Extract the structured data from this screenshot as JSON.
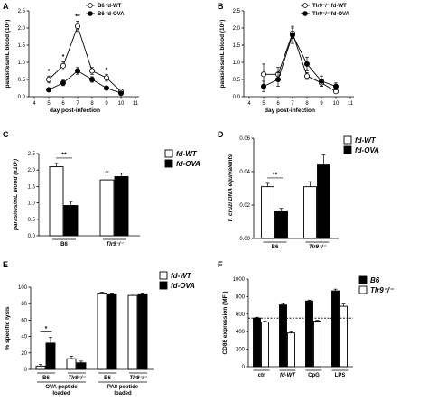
{
  "chart_data": [
    {
      "panel": "A",
      "type": "line",
      "x": [
        4,
        5,
        6,
        7,
        8,
        9,
        10,
        11
      ],
      "xlabel": "day post-infection",
      "ylabel": "parasites/mL blood (10⁶)",
      "ylim": [
        0,
        2.5
      ],
      "yticks": [
        "0.0",
        "0.5",
        "1.0",
        "1.5",
        "2.0",
        "2.5"
      ],
      "xticks": [
        "4",
        "5",
        "6",
        "7",
        "8",
        "9",
        "10",
        "11"
      ],
      "series": [
        {
          "name": "B6 fd-WT",
          "marker": "open",
          "x": [
            5,
            6,
            7,
            8,
            9,
            10
          ],
          "values": [
            0.5,
            0.9,
            2.05,
            0.75,
            0.55,
            0.15
          ],
          "err": [
            0.1,
            0.12,
            0.15,
            0.1,
            0.1,
            0.05
          ]
        },
        {
          "name": "B6 fd-OVA",
          "marker": "filled",
          "x": [
            5,
            6,
            7,
            8,
            9,
            10
          ],
          "values": [
            0.2,
            0.4,
            0.75,
            0.5,
            0.25,
            0.1
          ],
          "err": [
            0.05,
            0.08,
            0.1,
            0.08,
            0.05,
            0.03
          ]
        }
      ],
      "sig": [
        {
          "x": 5,
          "label": "*"
        },
        {
          "x": 6,
          "label": "*"
        },
        {
          "x": 7,
          "label": "**"
        },
        {
          "x": 9,
          "label": "*"
        }
      ]
    },
    {
      "panel": "B",
      "type": "line",
      "x": [
        4,
        5,
        6,
        7,
        8,
        9,
        10,
        11
      ],
      "xlabel": "day post-infection",
      "ylabel": "parasites/mL blood (10⁶)",
      "ylim": [
        0,
        2.5
      ],
      "yticks": [
        "0.0",
        "0.5",
        "1.0",
        "1.5",
        "2.0",
        "2.5"
      ],
      "xticks": [
        "4",
        "5",
        "6",
        "7",
        "8",
        "9",
        "10",
        "11"
      ],
      "series": [
        {
          "name": "Tlr9⁻/⁻ fd-WT",
          "marker": "open",
          "x": [
            5,
            6,
            7,
            8,
            9,
            10
          ],
          "values": [
            0.65,
            0.65,
            1.85,
            0.6,
            0.4,
            0.15
          ],
          "err": [
            0.3,
            0.2,
            0.15,
            0.1,
            0.1,
            0.05
          ]
        },
        {
          "name": "Tlr9⁻/⁻ fd-OVA",
          "marker": "filled",
          "x": [
            5,
            6,
            7,
            8,
            9,
            10
          ],
          "values": [
            0.3,
            0.5,
            1.8,
            0.95,
            0.45,
            0.3
          ],
          "err": [
            0.15,
            0.2,
            0.25,
            0.2,
            0.15,
            0.1
          ]
        }
      ]
    },
    {
      "panel": "C",
      "type": "bar",
      "ylabel": "parasites/mL blood (x10⁶)",
      "ylim": [
        0,
        2.5
      ],
      "yticks": [
        "0.0",
        "0.5",
        "1.0",
        "1.5",
        "2.0",
        "2.5"
      ],
      "groups": [
        "B6",
        "Tlr9⁻/⁻"
      ],
      "series": [
        {
          "name": "fd-WT",
          "fill": "white",
          "values": [
            2.1,
            1.7
          ],
          "err": [
            0.1,
            0.25
          ]
        },
        {
          "name": "fd-OVA",
          "fill": "black",
          "values": [
            0.92,
            1.8
          ],
          "err": [
            0.12,
            0.1
          ]
        }
      ],
      "sig": [
        {
          "group": 0,
          "label": "**"
        }
      ]
    },
    {
      "panel": "D",
      "type": "bar",
      "ylabel": "T. cruzi DNA equivalents",
      "ylim": [
        0,
        0.06
      ],
      "yticks": [
        "0.00",
        "0.02",
        "0.04",
        "0.06"
      ],
      "groups": [
        "B6",
        "Tlr9⁻/⁻"
      ],
      "series": [
        {
          "name": "fd-WT",
          "fill": "white",
          "values": [
            0.031,
            0.031
          ],
          "err": [
            0.002,
            0.003
          ]
        },
        {
          "name": "fd-OVA",
          "fill": "black",
          "values": [
            0.016,
            0.044
          ],
          "err": [
            0.002,
            0.006
          ]
        }
      ],
      "sig": [
        {
          "group": 0,
          "label": "**"
        }
      ]
    },
    {
      "panel": "E",
      "type": "bar",
      "ylabel": "% specific lysis",
      "ylim": [
        0,
        100
      ],
      "yticks": [
        "0",
        "20",
        "40",
        "60",
        "80",
        "100"
      ],
      "groups": [
        "B6",
        "Tlr9⁻/⁻",
        "B6",
        "Tlr9⁻/⁻"
      ],
      "group_captions": [
        "OVA peptide loaded",
        "PA8 peptide loaded"
      ],
      "series": [
        {
          "name": "fd-WT",
          "fill": "white",
          "values": [
            4,
            13,
            93,
            90
          ],
          "err": [
            2,
            3,
            1,
            2
          ]
        },
        {
          "name": "fd-OVA",
          "fill": "black",
          "values": [
            32,
            8,
            92,
            92
          ],
          "err": [
            7,
            2,
            1,
            1
          ]
        }
      ],
      "sig": [
        {
          "group": 0,
          "label": "*"
        }
      ]
    },
    {
      "panel": "F",
      "type": "bar",
      "ylabel": "CD86 expression (MFI)",
      "ylim": [
        0,
        1000
      ],
      "yticks": [
        "0",
        "200",
        "400",
        "600",
        "800",
        "1000"
      ],
      "groups": [
        "ctr",
        "fd-WT",
        "CpG",
        "LPS"
      ],
      "series": [
        {
          "name": "B6",
          "fill": "black",
          "values": [
            555,
            705,
            750,
            865
          ],
          "err": [
            10,
            15,
            10,
            20
          ]
        },
        {
          "name": "Tlr9⁻/⁻",
          "fill": "white",
          "values": [
            510,
            385,
            520,
            690
          ],
          "err": [
            10,
            15,
            10,
            25
          ]
        }
      ],
      "reference_lines": [
        555,
        510
      ]
    }
  ]
}
